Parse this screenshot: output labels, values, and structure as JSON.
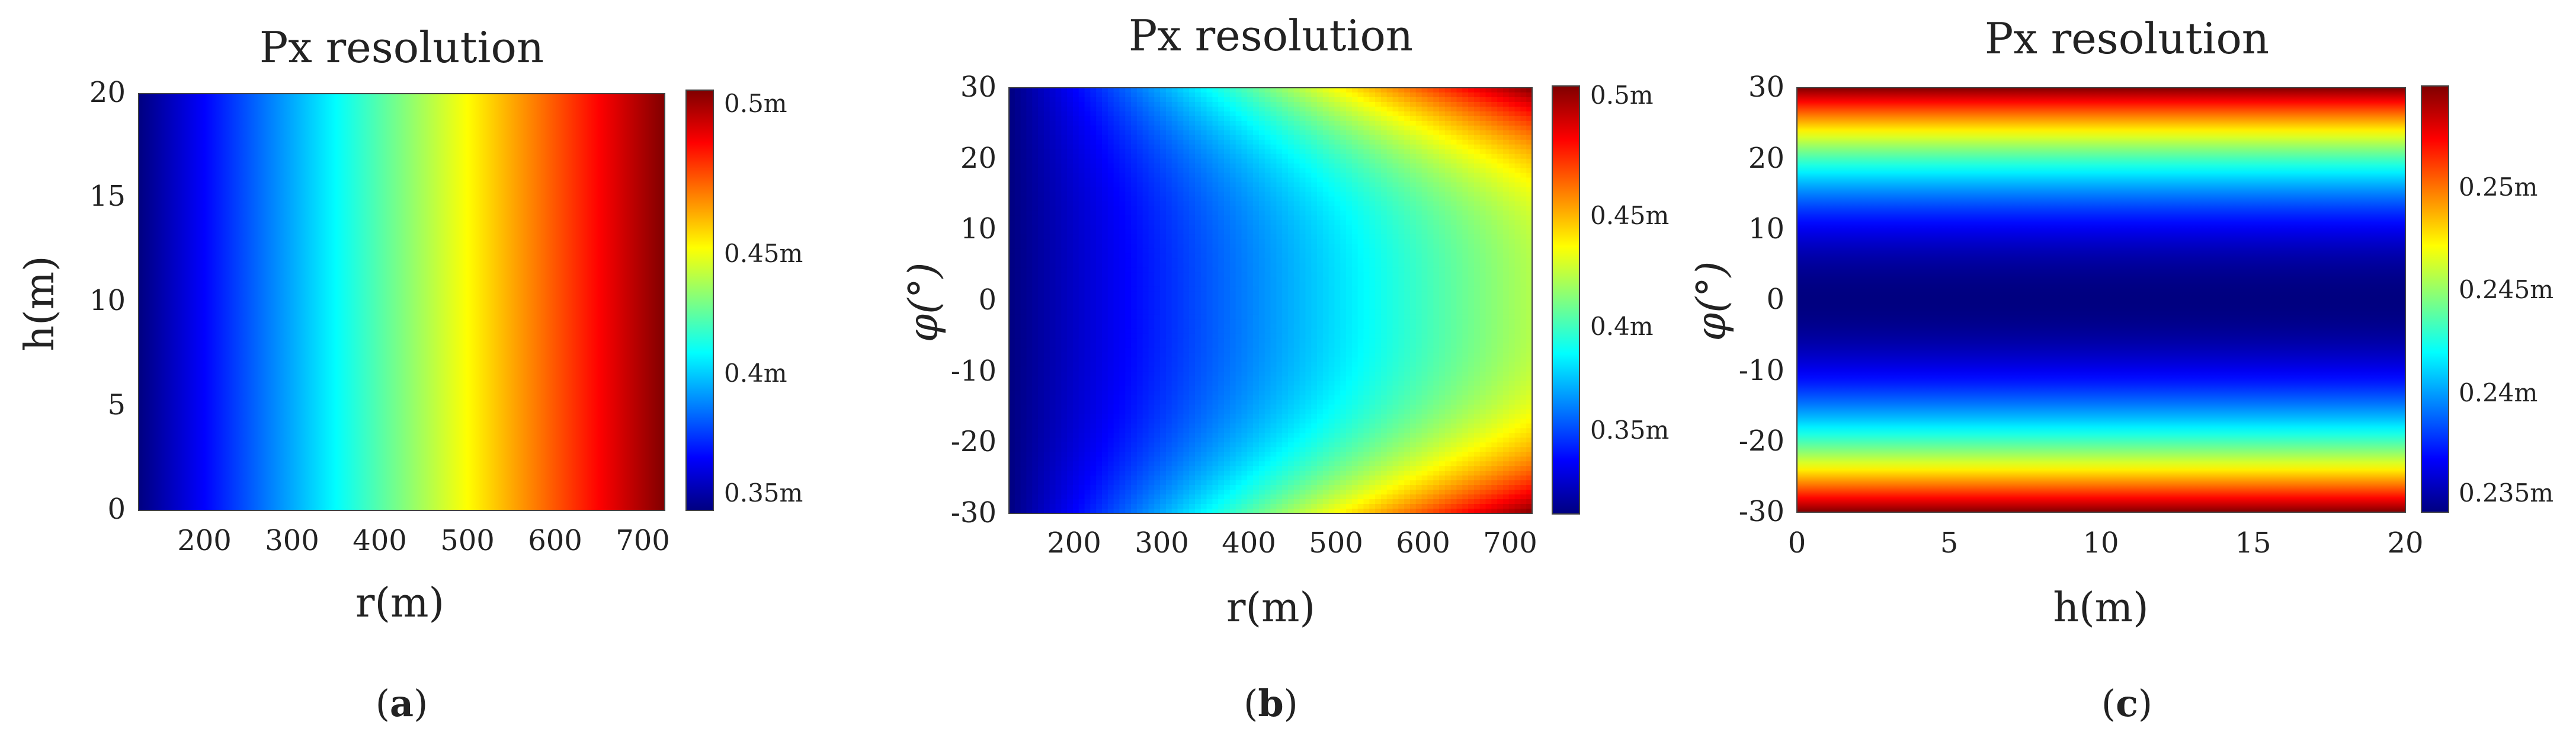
{
  "chart_data": [
    {
      "type": "heatmap",
      "panel_label": "a",
      "title": "Px resolution",
      "xlabel": "r(m)",
      "ylabel": "h(m)",
      "xlim": [
        120,
        720
      ],
      "ylim": [
        0,
        20
      ],
      "x_ticks": [
        200,
        300,
        400,
        500,
        600,
        700
      ],
      "y_ticks": [
        0,
        5,
        10,
        15,
        20
      ],
      "field": "varies with r only; resolution increases linearly with range r",
      "z_min": 0.335,
      "z_max": 0.51,
      "z_at_xlim": [
        0.335,
        0.51
      ],
      "colormap": "jet",
      "colorbar": {
        "range": [
          0.335,
          0.51
        ],
        "ticks": [
          0.35,
          0.4,
          0.45,
          0.5
        ],
        "tick_labels": [
          "0.35m",
          "0.4m",
          "0.45m",
          "0.5m"
        ]
      },
      "grid": false,
      "legend": "colorbar on right"
    },
    {
      "type": "heatmap",
      "panel_label": "b",
      "title": "Px resolution",
      "xlabel": "r(m)",
      "ylabel": "φ(°)",
      "xlim": [
        120,
        720
      ],
      "ylim": [
        -30,
        30
      ],
      "x_ticks": [
        200,
        300,
        400,
        500,
        600,
        700
      ],
      "y_ticks": [
        -30,
        -20,
        -10,
        0,
        10,
        20,
        30
      ],
      "field": "increases with range r and with |φ|; minimum at r=120, φ=0; maximum at r=720, φ=±30",
      "z_min": 0.31,
      "z_max": 0.51,
      "colormap": "jet",
      "colorbar": {
        "range": [
          0.31,
          0.51
        ],
        "ticks": [
          0.35,
          0.4,
          0.45,
          0.5
        ],
        "tick_labels": [
          "0.35m",
          "0.4m",
          "0.45m",
          "0.5m"
        ]
      },
      "grid": false,
      "legend": "colorbar on right"
    },
    {
      "type": "heatmap",
      "panel_label": "c",
      "title": "Px resolution",
      "xlabel": "h(m)",
      "ylabel": "φ(°)",
      "xlim": [
        0,
        20
      ],
      "ylim": [
        -30,
        30
      ],
      "x_ticks": [
        0,
        5,
        10,
        15,
        20
      ],
      "y_ticks": [
        -30,
        -20,
        -10,
        0,
        10,
        20,
        30
      ],
      "field": "varies with φ only; minimum at φ=0, maximum at φ=±30",
      "z_min": 0.2335,
      "z_max": 0.2545,
      "colormap": "jet",
      "colorbar": {
        "range": [
          0.2335,
          0.2545
        ],
        "ticks": [
          0.235,
          0.24,
          0.245,
          0.25
        ],
        "tick_labels": [
          "0.235m",
          "0.24m",
          "0.245m",
          "0.25m"
        ]
      },
      "grid": false,
      "legend": "colorbar on right"
    }
  ]
}
